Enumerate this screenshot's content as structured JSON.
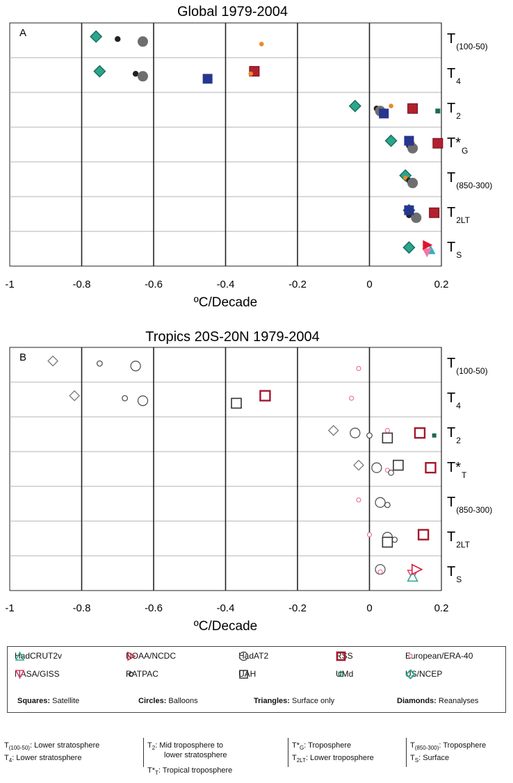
{
  "chart_data": [
    {
      "type": "scatter",
      "title": "Global 1979-2004",
      "panel_label": "A",
      "xlabel": "ºC/Decade",
      "xlim": [
        -1,
        0.2
      ],
      "xticks": [
        "-1",
        "-0.8",
        "-0.6",
        "-0.4",
        "-0.2",
        "0",
        "0.2"
      ],
      "levels": [
        {
          "label": "T",
          "sub": "(100-50)",
          "sup": ""
        },
        {
          "label": "T",
          "sub": "4",
          "sup": ""
        },
        {
          "label": "T",
          "sub": "2",
          "sup": ""
        },
        {
          "label": "T",
          "sub": "G",
          "sup": "*"
        },
        {
          "label": "T",
          "sub": "(850-300)",
          "sup": ""
        },
        {
          "label": "T",
          "sub": "2LT",
          "sup": ""
        },
        {
          "label": "T",
          "sub": "S",
          "sup": ""
        }
      ],
      "points": [
        {
          "dataset": "US/NCEP",
          "level": 0,
          "x": -0.76
        },
        {
          "dataset": "RATPAC",
          "level": 0,
          "x": -0.7
        },
        {
          "dataset": "HadAT2",
          "level": 0,
          "x": -0.63
        },
        {
          "dataset": "European/ERA-40",
          "level": 0,
          "x": -0.3
        },
        {
          "dataset": "US/NCEP",
          "level": 1,
          "x": -0.75
        },
        {
          "dataset": "RATPAC",
          "level": 1,
          "x": -0.65
        },
        {
          "dataset": "HadAT2",
          "level": 1,
          "x": -0.63
        },
        {
          "dataset": "UAH",
          "level": 1,
          "x": -0.45
        },
        {
          "dataset": "RSS",
          "level": 1,
          "x": -0.32
        },
        {
          "dataset": "European/ERA-40",
          "level": 1,
          "x": -0.33
        },
        {
          "dataset": "US/NCEP",
          "level": 2,
          "x": -0.04
        },
        {
          "dataset": "RATPAC",
          "level": 2,
          "x": 0.02
        },
        {
          "dataset": "HadAT2",
          "level": 2,
          "x": 0.03
        },
        {
          "dataset": "UAH",
          "level": 2,
          "x": 0.04
        },
        {
          "dataset": "European/ERA-40",
          "level": 2,
          "x": 0.06
        },
        {
          "dataset": "RSS",
          "level": 2,
          "x": 0.12
        },
        {
          "dataset": "UMd",
          "level": 2,
          "x": 0.19
        },
        {
          "dataset": "US/NCEP",
          "level": 3,
          "x": 0.06
        },
        {
          "dataset": "European/ERA-40",
          "level": 3,
          "x": 0.12
        },
        {
          "dataset": "RATPAC",
          "level": 3,
          "x": 0.11
        },
        {
          "dataset": "HadAT2",
          "level": 3,
          "x": 0.12
        },
        {
          "dataset": "UAH",
          "level": 3,
          "x": 0.11
        },
        {
          "dataset": "RSS",
          "level": 3,
          "x": 0.19
        },
        {
          "dataset": "US/NCEP",
          "level": 4,
          "x": 0.1
        },
        {
          "dataset": "European/ERA-40",
          "level": 4,
          "x": 0.1
        },
        {
          "dataset": "RATPAC",
          "level": 4,
          "x": 0.11
        },
        {
          "dataset": "HadAT2",
          "level": 4,
          "x": 0.12
        },
        {
          "dataset": "US/NCEP",
          "level": 5,
          "x": 0.11
        },
        {
          "dataset": "European/ERA-40",
          "level": 5,
          "x": 0.11
        },
        {
          "dataset": "RATPAC",
          "level": 5,
          "x": 0.11
        },
        {
          "dataset": "HadAT2",
          "level": 5,
          "x": 0.13
        },
        {
          "dataset": "UAH",
          "level": 5,
          "x": 0.11
        },
        {
          "dataset": "RSS",
          "level": 5,
          "x": 0.18
        },
        {
          "dataset": "European/ERA-40",
          "level": 6,
          "x": 0.11
        },
        {
          "dataset": "US/NCEP",
          "level": 6,
          "x": 0.11
        },
        {
          "dataset": "HadCRUT2v",
          "level": 6,
          "x": 0.17
        },
        {
          "dataset": "NASA/GISS",
          "level": 6,
          "x": 0.16
        },
        {
          "dataset": "NOAA/NCDC",
          "level": 6,
          "x": 0.16
        }
      ]
    },
    {
      "type": "scatter",
      "title": "Tropics 20S-20N 1979-2004",
      "panel_label": "B",
      "xlabel": "ºC/Decade",
      "xlim": [
        -1,
        0.2
      ],
      "xticks": [
        "-1",
        "-0.8",
        "-0.6",
        "-0.4",
        "-0.2",
        "0",
        "0.2"
      ],
      "levels": [
        {
          "label": "T",
          "sub": "(100-50)",
          "sup": ""
        },
        {
          "label": "T",
          "sub": "4",
          "sup": ""
        },
        {
          "label": "T",
          "sub": "2",
          "sup": ""
        },
        {
          "label": "T",
          "sub": "T",
          "sup": "*"
        },
        {
          "label": "T",
          "sub": "(850-300)",
          "sup": ""
        },
        {
          "label": "T",
          "sub": "2LT",
          "sup": ""
        },
        {
          "label": "T",
          "sub": "S",
          "sup": ""
        }
      ],
      "points": [
        {
          "dataset": "US/NCEP",
          "level": 0,
          "x": -0.88
        },
        {
          "dataset": "RATPAC",
          "level": 0,
          "x": -0.75
        },
        {
          "dataset": "HadAT2",
          "level": 0,
          "x": -0.65
        },
        {
          "dataset": "European/ERA-40",
          "level": 0,
          "x": -0.03
        },
        {
          "dataset": "US/NCEP",
          "level": 1,
          "x": -0.82
        },
        {
          "dataset": "RATPAC",
          "level": 1,
          "x": -0.68
        },
        {
          "dataset": "HadAT2",
          "level": 1,
          "x": -0.63
        },
        {
          "dataset": "UAH",
          "level": 1,
          "x": -0.37
        },
        {
          "dataset": "RSS",
          "level": 1,
          "x": -0.29
        },
        {
          "dataset": "European/ERA-40",
          "level": 1,
          "x": -0.05
        },
        {
          "dataset": "US/NCEP",
          "level": 2,
          "x": -0.1
        },
        {
          "dataset": "HadAT2",
          "level": 2,
          "x": -0.04
        },
        {
          "dataset": "RATPAC",
          "level": 2,
          "x": 0.0
        },
        {
          "dataset": "UAH",
          "level": 2,
          "x": 0.05
        },
        {
          "dataset": "European/ERA-40",
          "level": 2,
          "x": 0.05
        },
        {
          "dataset": "RSS",
          "level": 2,
          "x": 0.14
        },
        {
          "dataset": "UMd",
          "level": 2,
          "x": 0.18
        },
        {
          "dataset": "US/NCEP",
          "level": 3,
          "x": -0.03
        },
        {
          "dataset": "HadAT2",
          "level": 3,
          "x": 0.02
        },
        {
          "dataset": "European/ERA-40",
          "level": 3,
          "x": 0.05
        },
        {
          "dataset": "RATPAC",
          "level": 3,
          "x": 0.06
        },
        {
          "dataset": "UAH",
          "level": 3,
          "x": 0.08
        },
        {
          "dataset": "RSS",
          "level": 3,
          "x": 0.17
        },
        {
          "dataset": "European/ERA-40",
          "level": 4,
          "x": -0.03
        },
        {
          "dataset": "HadAT2",
          "level": 4,
          "x": 0.03
        },
        {
          "dataset": "RATPAC",
          "level": 4,
          "x": 0.05
        },
        {
          "dataset": "European/ERA-40",
          "level": 5,
          "x": 0.0
        },
        {
          "dataset": "HadAT2",
          "level": 5,
          "x": 0.05
        },
        {
          "dataset": "RATPAC",
          "level": 5,
          "x": 0.07
        },
        {
          "dataset": "UAH",
          "level": 5,
          "x": 0.05
        },
        {
          "dataset": "RSS",
          "level": 5,
          "x": 0.15
        },
        {
          "dataset": "HadAT2",
          "level": 6,
          "x": 0.03
        },
        {
          "dataset": "European/ERA-40",
          "level": 6,
          "x": 0.03
        },
        {
          "dataset": "NASA/GISS",
          "level": 6,
          "x": 0.12
        },
        {
          "dataset": "HadCRUT2v",
          "level": 6,
          "x": 0.12
        },
        {
          "dataset": "NOAA/NCDC",
          "level": 6,
          "x": 0.13
        }
      ]
    }
  ],
  "legend": {
    "items": [
      {
        "name": "HadCRUT2v",
        "symbol": "triangle-up",
        "color": "#2ca58d"
      },
      {
        "name": "NOAA/NCDC",
        "symbol": "triangle-right",
        "color": "#d81b40"
      },
      {
        "name": "HadAT2",
        "symbol": "circle-open-large",
        "color": "#555555"
      },
      {
        "name": "RSS",
        "symbol": "square-open-thick",
        "color": "#a3172c"
      },
      {
        "name": "European/ERA-40",
        "symbol": "circle-small-pink",
        "color": "#ea7a93"
      },
      {
        "name": "NASA/GISS",
        "symbol": "triangle-down",
        "color": "#ea3a6a"
      },
      {
        "name": "RATPAC",
        "symbol": "circle-open-small",
        "color": "#333333"
      },
      {
        "name": "UAH",
        "symbol": "square-open",
        "color": "#333333"
      },
      {
        "name": "UMd",
        "symbol": "square-open-small",
        "color": "#1e6b4a"
      },
      {
        "name": "US/NCEP",
        "symbol": "diamond",
        "color": "#2ca58d"
      }
    ],
    "categories": [
      {
        "bold": "Squares:",
        "text": "Satellite"
      },
      {
        "bold": "Circles:",
        "text": "Balloons"
      },
      {
        "bold": "Triangles:",
        "text": "Surface only"
      },
      {
        "bold": "Diamonds:",
        "text": "Reanalyses"
      }
    ]
  },
  "notes": {
    "col1_a_sub": "(100-50)",
    "col1_a_text": ": Lower stratosphere",
    "col1_b_sub": "4",
    "col1_b_text": ": Lower stratosphere",
    "col2_a_sub": "2",
    "col2_a_text": ": Mid troposphere to",
    "col2_a_text2": "lower stratosphere",
    "col2_b_sub": "T",
    "col2_b_text": ": Tropical troposphere",
    "col3_a_sub": "G",
    "col3_a_text": ": Troposphere",
    "col3_b_sub": "2LT",
    "col3_b_text": ": Lower troposphere",
    "col4_a_sub": "(850-300)",
    "col4_a_text": ": Troposphere",
    "col4_b_sub": "S",
    "col4_b_text": ": Surface",
    "T": "T",
    "Tstar": "T*"
  },
  "colors": {
    "ncep": "#2ca58d",
    "ratpac": "#222222",
    "hadat2": "#6e6e6e",
    "uah": "#27368f",
    "rss": "#b3202e",
    "era40": "#e88a2e",
    "umd": "#1e6b4a",
    "hadcrut": "#2ab3c3",
    "giss": "#f07aa0",
    "ncdc": "#e2142e"
  }
}
